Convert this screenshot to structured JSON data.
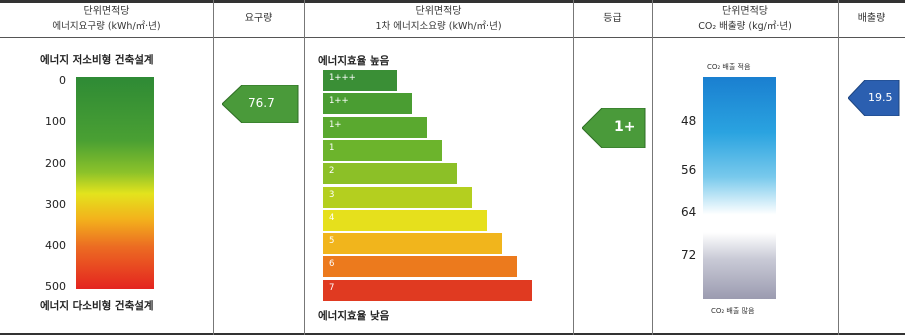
{
  "headers": {
    "col1_line1": "단위면적당",
    "col1_line2": "에너지요구량 (kWh/㎡·년)",
    "col2": "요구량",
    "col3_line1": "단위면적당",
    "col3_line2": "1차 에너지소요량 (kWh/㎡·년)",
    "col4": "등급",
    "col5_line1": "단위면적당",
    "col5_line2": "CO₂ 배출량 (kg/㎡·년)",
    "col6": "배출량"
  },
  "demand_scale": {
    "top_label": "에너지 저소비형 건축설계",
    "bottom_label": "에너지 다소비형 건축설계",
    "ticks": [
      "0",
      "100",
      "200",
      "300",
      "400",
      "500"
    ]
  },
  "demand_value": "76.7",
  "efficiency": {
    "top_label": "에너지효율 높음",
    "bottom_label": "에너지효율 낮음",
    "grades": [
      "1+++",
      "1++",
      "1+",
      "1",
      "2",
      "3",
      "4",
      "5",
      "6",
      "7"
    ],
    "colors": [
      "#3a8f36",
      "#4a9d32",
      "#5aa92f",
      "#6cb42c",
      "#8cc027",
      "#b4cf1f",
      "#e6e01c",
      "#f1b51c",
      "#ec7a1d",
      "#e03a21"
    ]
  },
  "grade_value": "1+",
  "co2": {
    "top_label": "CO₂ 배출 적음",
    "bottom_label": "CO₂ 배출 많음",
    "ticks": [
      "48",
      "56",
      "64",
      "72"
    ]
  },
  "co2_value": "19.5",
  "colors": {
    "arrow_green": "#4a9a3a",
    "arrow_blue": "#2b5fb0"
  }
}
